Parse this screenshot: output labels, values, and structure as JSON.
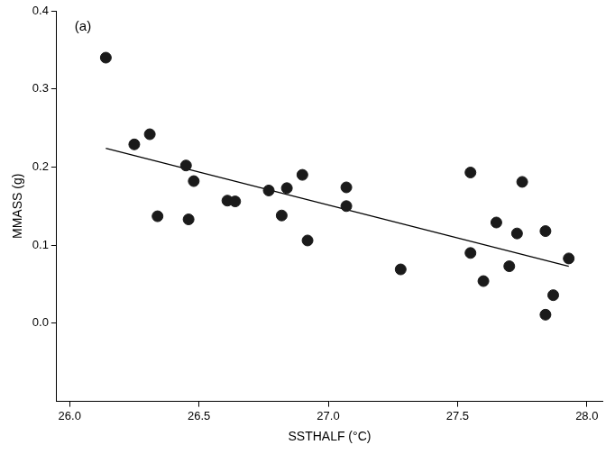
{
  "chart_data": {
    "type": "scatter",
    "xlabel": "SSTHALF (°C)",
    "ylabel": "MMASS (g)",
    "annotations": [
      "(a)"
    ],
    "xlim": [
      25.95,
      28.06
    ],
    "ylim": [
      -0.1,
      0.4
    ],
    "xticks": [
      {
        "value": 26,
        "label": "26.0"
      },
      {
        "value": 26.5,
        "label": "26.5"
      },
      {
        "value": 27,
        "label": "27.0"
      },
      {
        "value": 27.5,
        "label": "27.5"
      },
      {
        "value": 28,
        "label": "28.0"
      }
    ],
    "yticks": [
      {
        "value": 0,
        "label": "0.0"
      },
      {
        "value": 0.1,
        "label": "0.1"
      },
      {
        "value": 0.2,
        "label": "0.2"
      },
      {
        "value": 0.3,
        "label": "0.3"
      },
      {
        "value": 0.4,
        "label": "0.4"
      }
    ],
    "grid": false,
    "series": [
      {
        "type": "scatter",
        "marker": "circle",
        "color": "#1a1a1a",
        "x": [
          26.14,
          26.25,
          26.31,
          26.34,
          26.45,
          26.48,
          26.46,
          26.61,
          26.64,
          26.77,
          26.82,
          26.84,
          26.9,
          26.92,
          27.07,
          27.07,
          27.28,
          27.55,
          27.55,
          27.6,
          27.65,
          27.7,
          27.73,
          27.75,
          27.84,
          27.84,
          27.87,
          27.93
        ],
        "values": [
          0.34,
          0.229,
          0.242,
          0.137,
          0.202,
          0.182,
          0.133,
          0.157,
          0.156,
          0.17,
          0.138,
          0.173,
          0.19,
          0.106,
          0.174,
          0.15,
          0.069,
          0.193,
          0.09,
          0.054,
          0.129,
          0.073,
          0.115,
          0.181,
          0.118,
          0.011,
          0.036,
          0.083
        ]
      },
      {
        "type": "line",
        "line_style": "solid",
        "color": "#000000",
        "x": [
          26.14,
          27.93
        ],
        "values": [
          0.224,
          0.073
        ]
      }
    ]
  }
}
